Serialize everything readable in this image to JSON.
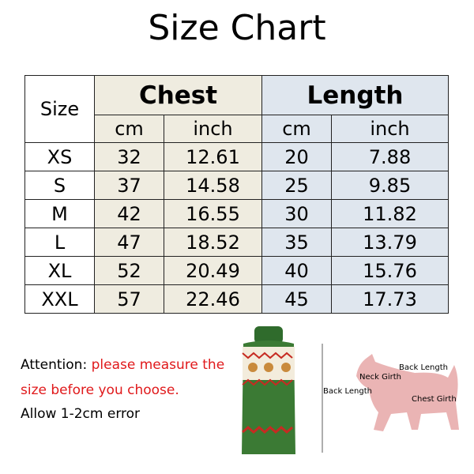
{
  "title": "Size Chart",
  "table": {
    "size_header": "Size",
    "groups": [
      "Chest",
      "Length"
    ],
    "units": [
      "cm",
      "inch",
      "cm",
      "inch"
    ],
    "rows": [
      [
        "XS",
        "32",
        "12.61",
        "20",
        "7.88"
      ],
      [
        "S",
        "37",
        "14.58",
        "25",
        "9.85"
      ],
      [
        "M",
        "42",
        "16.55",
        "30",
        "11.82"
      ],
      [
        "L",
        "47",
        "18.52",
        "35",
        "13.79"
      ],
      [
        "XL",
        "52",
        "20.49",
        "40",
        "15.76"
      ],
      [
        "XXL",
        "57",
        "22.46",
        "45",
        "17.73"
      ]
    ]
  },
  "colors": {
    "chest_bg": "#efece0",
    "length_bg": "#dfe6ee",
    "attention_red": "#e0191b"
  },
  "notes": {
    "attention_label": "Attention: ",
    "attention_red_1": "please measure the",
    "attention_red_2": "size before you choose.",
    "error": "Allow 1-2cm error"
  },
  "diagram": {
    "back_length": "Back Length",
    "dog_back_length": "Back Length",
    "neck_girth": "Neck Girth",
    "chest_girth": "Chest Girth"
  }
}
